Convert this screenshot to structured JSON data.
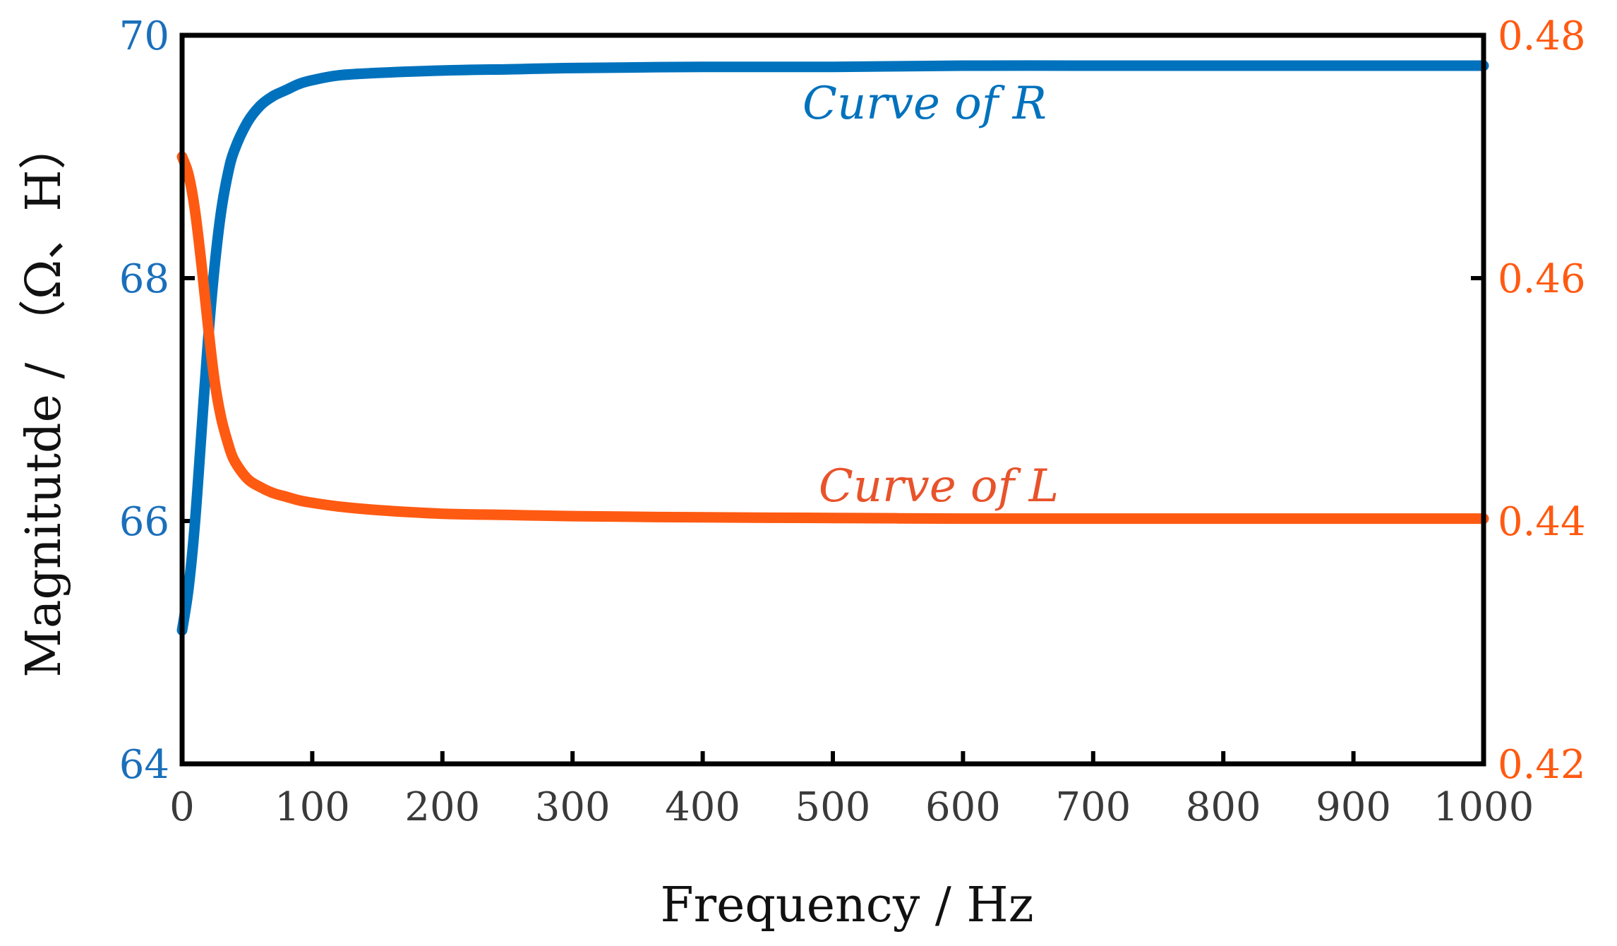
{
  "chart_data": {
    "type": "line",
    "xlabel": "Frequency / Hz",
    "ylabel": "Magnitutde / （Ω、H）",
    "xlim": [
      0,
      1000
    ],
    "ylim_left": [
      64,
      70
    ],
    "ylim_right": [
      0.42,
      0.48
    ],
    "x_ticks": [
      "0",
      "100",
      "200",
      "300",
      "400",
      "500",
      "600",
      "700",
      "800",
      "900",
      "1000"
    ],
    "y_ticks_left": [
      "64",
      "66",
      "68",
      "70"
    ],
    "y_ticks_right": [
      "0.42",
      "0.44",
      "0.46",
      "0.48"
    ],
    "colors": {
      "R": "#0072bd",
      "L": "#ff5a12",
      "axis": "#000000"
    },
    "series": [
      {
        "name": "R",
        "label": "Curve of R",
        "axis": "left",
        "x": [
          0,
          5,
          10,
          15,
          20,
          25,
          30,
          35,
          40,
          50,
          60,
          70,
          80,
          90,
          100,
          120,
          150,
          200,
          250,
          300,
          400,
          500,
          600,
          700,
          800,
          900,
          1000
        ],
        "values": [
          65.1,
          65.45,
          66.0,
          66.75,
          67.5,
          68.1,
          68.55,
          68.85,
          69.05,
          69.28,
          69.42,
          69.5,
          69.55,
          69.6,
          69.63,
          69.67,
          69.69,
          69.71,
          69.72,
          69.73,
          69.74,
          69.74,
          69.75,
          69.75,
          69.75,
          69.75,
          69.75
        ]
      },
      {
        "name": "L",
        "label": "Curve of L",
        "axis": "right",
        "x": [
          0,
          5,
          10,
          15,
          20,
          25,
          30,
          35,
          40,
          50,
          60,
          70,
          80,
          90,
          100,
          120,
          150,
          200,
          250,
          300,
          400,
          500,
          600,
          700,
          800,
          900,
          1000
        ],
        "values": [
          0.47,
          0.4685,
          0.4655,
          0.461,
          0.456,
          0.4515,
          0.4485,
          0.4465,
          0.445,
          0.4435,
          0.4428,
          0.4423,
          0.442,
          0.4417,
          0.4415,
          0.4412,
          0.4409,
          0.4406,
          0.4405,
          0.4404,
          0.4403,
          0.44025,
          0.4402,
          0.4402,
          0.4402,
          0.4402,
          0.4402
        ]
      }
    ]
  }
}
